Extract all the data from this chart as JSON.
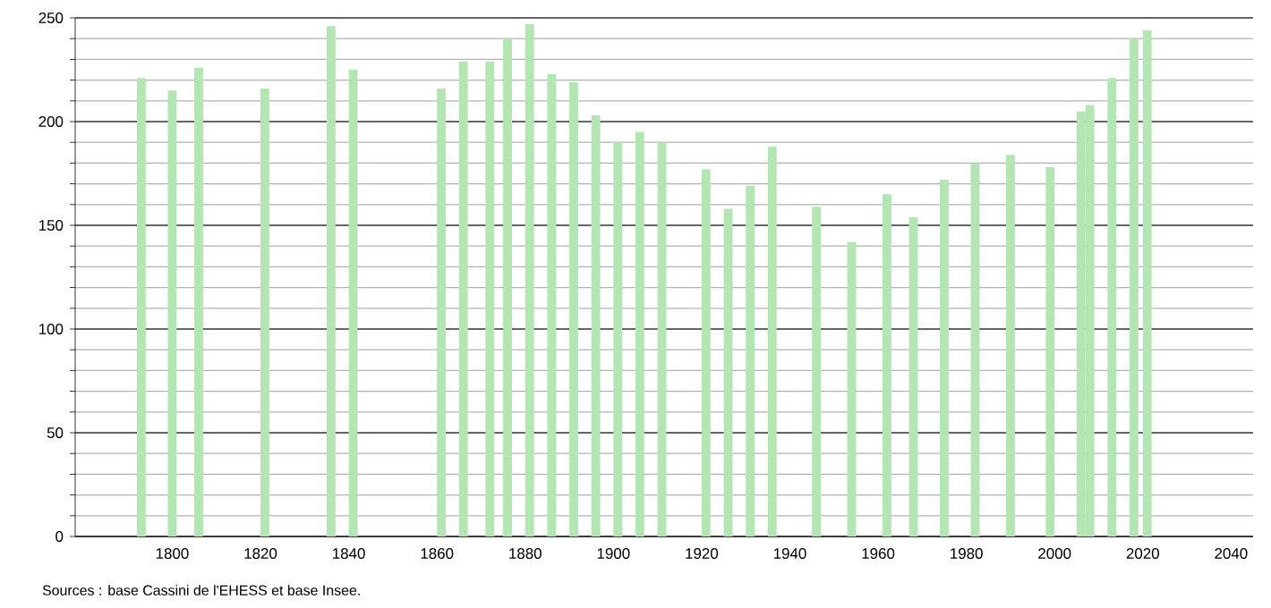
{
  "chart_data": {
    "type": "bar",
    "x": [
      1793,
      1800,
      1806,
      1821,
      1836,
      1841,
      1861,
      1866,
      1872,
      1876,
      1881,
      1886,
      1891,
      1896,
      1901,
      1906,
      1911,
      1921,
      1926,
      1931,
      1936,
      1946,
      1954,
      1962,
      1968,
      1975,
      1982,
      1990,
      1999,
      2006,
      2008,
      2013,
      2018,
      2021
    ],
    "values": [
      221,
      215,
      226,
      216,
      246,
      225,
      216,
      229,
      229,
      240,
      247,
      223,
      219,
      203,
      190,
      195,
      190,
      177,
      158,
      169,
      188,
      159,
      142,
      165,
      154,
      172,
      180,
      184,
      178,
      205,
      208,
      221,
      240,
      244
    ],
    "color": "#b3e6b3",
    "xlim": [
      1778,
      2045
    ],
    "xticks": [
      1800,
      1820,
      1840,
      1860,
      1880,
      1900,
      1920,
      1940,
      1960,
      1980,
      2000,
      2020,
      2040
    ],
    "ylim": [
      0,
      250
    ],
    "yticks": [
      0,
      {
        "value": 10,
        "label": null
      },
      {
        "value": 20,
        "label": null
      },
      {
        "value": 30,
        "label": null
      },
      {
        "value": 40,
        "label": null
      },
      50,
      {
        "value": 60,
        "label": null
      },
      {
        "value": 70,
        "label": null
      },
      {
        "value": 80,
        "label": null
      },
      {
        "value": 90,
        "label": null
      },
      100,
      {
        "value": 110,
        "label": null
      },
      {
        "value": 120,
        "label": null
      },
      {
        "value": 130,
        "label": null
      },
      {
        "value": 140,
        "label": null
      },
      150,
      {
        "value": 160,
        "label": null
      },
      {
        "value": 170,
        "label": null
      },
      {
        "value": 180,
        "label": null
      },
      {
        "value": 190,
        "label": null
      },
      200,
      {
        "value": 210,
        "label": null
      },
      {
        "value": 220,
        "label": null
      },
      {
        "value": 230,
        "label": null
      },
      {
        "value": 240,
        "label": null
      },
      250
    ],
    "grid": "y",
    "annotations": [
      "Sources : base Cassini de l'EHESS et base Insee."
    ]
  }
}
